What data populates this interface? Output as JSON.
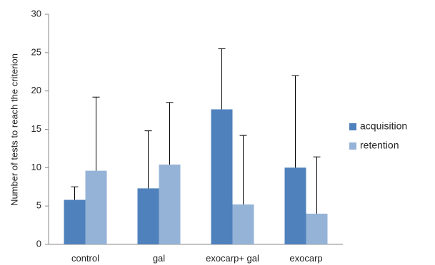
{
  "chart_data": {
    "type": "bar",
    "title": "",
    "xlabel": "",
    "ylabel": "Number of tests to reach the criterion",
    "ylim": [
      0,
      30
    ],
    "yticks": [
      0,
      5,
      10,
      15,
      20,
      25,
      30
    ],
    "grid": false,
    "legend_position": "right",
    "categories": [
      "control",
      "gal",
      "exocarp+ gal",
      "exocarp"
    ],
    "series": [
      {
        "name": "acquisition",
        "color": "#4f81bd",
        "values": [
          5.8,
          7.3,
          17.6,
          10.0
        ],
        "error_plus": [
          1.7,
          7.5,
          7.9,
          12.0
        ]
      },
      {
        "name": "retention",
        "color": "#95b3d7",
        "values": [
          9.6,
          10.4,
          5.2,
          4.0
        ],
        "error_plus": [
          9.6,
          8.1,
          9.0,
          7.4
        ]
      }
    ]
  }
}
